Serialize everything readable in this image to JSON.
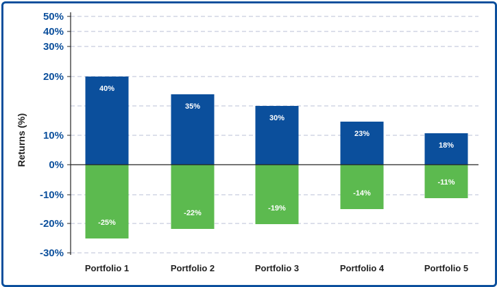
{
  "chart_data": {
    "type": "bar",
    "categories": [
      "Portfolio 1",
      "Portfolio 2",
      "Portfolio 3",
      "Portfolio 4",
      "Portfolio 5"
    ],
    "series": [
      {
        "values": [
          40,
          35,
          30,
          23,
          18
        ],
        "value_labels": [
          "40%",
          "35%",
          "30%",
          "23%",
          "18%"
        ]
      },
      {
        "values": [
          -25,
          -22,
          -19,
          -14,
          -11
        ],
        "value_labels": [
          "-25%",
          "-22%",
          "-19%",
          "-14%",
          "-11%"
        ]
      }
    ],
    "ylabel": "Returns (%)",
    "yticks": [
      "50%",
      "40%",
      "30%",
      "20%",
      "10%",
      "0%",
      "-10%",
      "-20%",
      "-30%"
    ],
    "ylim": [
      -30,
      50
    ],
    "colors": {
      "positive": "#0b4f9c",
      "negative": "#5cba4f",
      "grid": "#b8bfd6",
      "axis": "#222222",
      "frame": "#0b4f9c"
    },
    "grid": true
  }
}
